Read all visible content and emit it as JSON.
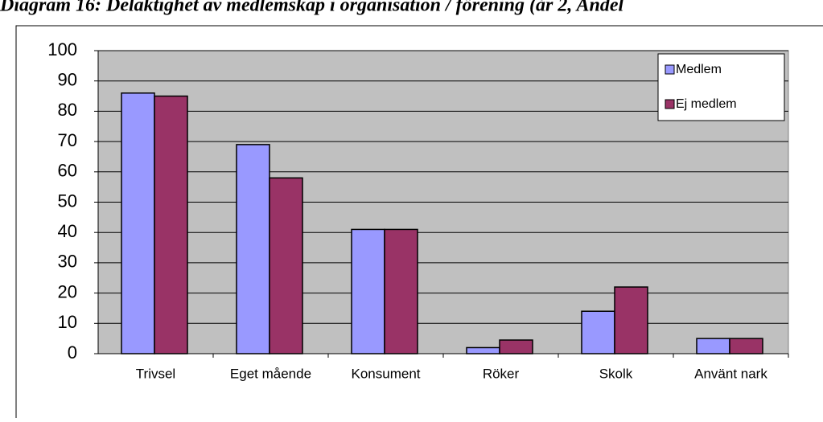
{
  "chart_data": {
    "type": "bar",
    "title": "Diagram 16: Delaktighet av medlemskap i organisation / förening (år 2, Andel",
    "categories": [
      "Trivsel",
      "Eget mående",
      "Konsument",
      "Röker",
      "Skolk",
      "Använt nark"
    ],
    "series": [
      {
        "name": "Medlem",
        "color": "#9999ff",
        "values": [
          86,
          69,
          41,
          2,
          14,
          5
        ]
      },
      {
        "name": "Ej medlem",
        "color": "#993366",
        "values": [
          85,
          58,
          41,
          4.5,
          22,
          5
        ]
      }
    ],
    "ylim": [
      0,
      100
    ],
    "yticks": [
      0,
      10,
      20,
      30,
      40,
      50,
      60,
      70,
      80,
      90,
      100
    ],
    "grid": true,
    "legend": "top-right"
  }
}
